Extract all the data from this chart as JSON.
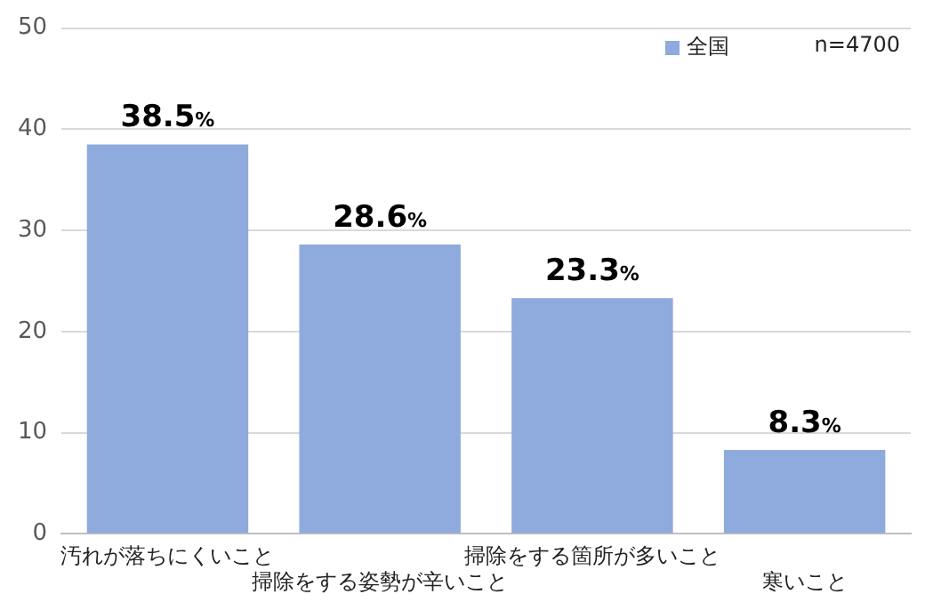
{
  "chart_data": {
    "type": "bar",
    "categories": [
      "汚れが落ちにくいこと",
      "掃除をする姿勢が辛いこと",
      "掃除をする箇所が多いこと",
      "寒いこと"
    ],
    "series": [
      {
        "name": "全国",
        "color": "#8faadc",
        "values": [
          38.5,
          28.6,
          23.3,
          8.3
        ],
        "value_labels": [
          "38.5%",
          "28.6%",
          "23.3%",
          "8.3%"
        ]
      }
    ],
    "ylim": [
      0,
      50
    ],
    "yticks": [
      0,
      10,
      20,
      30,
      40,
      50
    ],
    "grid": "y",
    "legend": "top right",
    "annotations": [
      "n=4700"
    ]
  }
}
